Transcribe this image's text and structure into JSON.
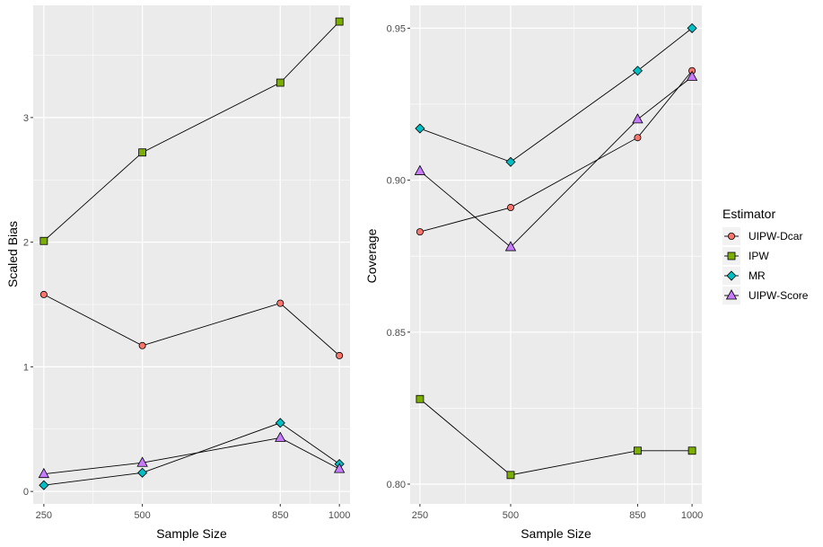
{
  "legend": {
    "title": "Estimator",
    "entries": [
      {
        "name": "UIPW-Dcar",
        "shape": "circle",
        "color": "#F8766D"
      },
      {
        "name": "IPW",
        "shape": "square",
        "color": "#7CAE00"
      },
      {
        "name": "MR",
        "shape": "diamond",
        "color": "#00BFC4"
      },
      {
        "name": "UIPW-Score",
        "shape": "triangle",
        "color": "#C77CFF"
      }
    ]
  },
  "chart_data": [
    {
      "type": "line",
      "title": "",
      "xlabel": "Sample Size",
      "ylabel": "Scaled Bias",
      "x": [
        250,
        500,
        850,
        1000
      ],
      "xlim": [
        223,
        1027
      ],
      "ylim": [
        -0.1,
        3.9
      ],
      "xticks": [
        250,
        500,
        850,
        1000
      ],
      "xtick_labels": [
        "250",
        "500",
        "850",
        "1000"
      ],
      "yticks": [
        0,
        1,
        2,
        3
      ],
      "ytick_labels": [
        "0",
        "1",
        "2",
        "3"
      ],
      "yminor": [
        0.5,
        1.5,
        2.5,
        3.5
      ],
      "series": [
        {
          "name": "UIPW-Dcar",
          "values": [
            1.58,
            1.17,
            1.51,
            1.09
          ]
        },
        {
          "name": "IPW",
          "values": [
            2.01,
            2.72,
            3.28,
            3.77
          ]
        },
        {
          "name": "MR",
          "values": [
            0.05,
            0.15,
            0.55,
            0.22
          ]
        },
        {
          "name": "UIPW-Score",
          "values": [
            0.14,
            0.23,
            0.43,
            0.18
          ]
        }
      ]
    },
    {
      "type": "line",
      "title": "",
      "xlabel": "Sample Size",
      "ylabel": "Coverage",
      "x": [
        250,
        500,
        850,
        1000
      ],
      "xlim": [
        223,
        1027
      ],
      "ylim": [
        0.7935,
        0.9575
      ],
      "xticks": [
        250,
        500,
        850,
        1000
      ],
      "xtick_labels": [
        "250",
        "500",
        "850",
        "1000"
      ],
      "yticks": [
        0.8,
        0.85,
        0.9,
        0.95
      ],
      "ytick_labels": [
        "0.80",
        "0.85",
        "0.90",
        "0.95"
      ],
      "yminor": [
        0.825,
        0.875,
        0.925
      ],
      "series": [
        {
          "name": "UIPW-Dcar",
          "values": [
            0.883,
            0.891,
            0.914,
            0.936
          ]
        },
        {
          "name": "IPW",
          "values": [
            0.828,
            0.803,
            0.811,
            0.811
          ]
        },
        {
          "name": "MR",
          "values": [
            0.917,
            0.906,
            0.936,
            0.95
          ]
        },
        {
          "name": "UIPW-Score",
          "values": [
            0.903,
            0.878,
            0.92,
            0.934
          ]
        }
      ]
    }
  ]
}
